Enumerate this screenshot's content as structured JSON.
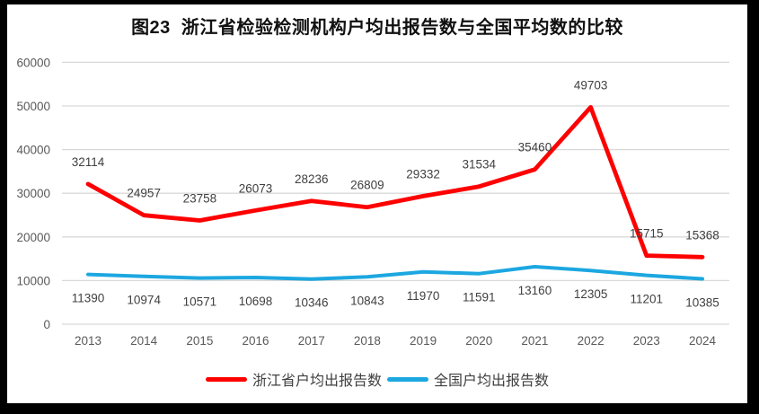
{
  "page": {
    "border_color": "#000000",
    "panel_background": "#ffffff"
  },
  "chart_data": {
    "type": "line",
    "title": "图23  浙江省检验检测机构户均出报告数与全国平均数的比较",
    "categories": [
      "2013",
      "2014",
      "2015",
      "2016",
      "2017",
      "2018",
      "2019",
      "2020",
      "2021",
      "2022",
      "2023",
      "2024"
    ],
    "series": [
      {
        "name": "浙江省户均出报告数",
        "color": "#FE0000",
        "values": [
          32114,
          24957,
          23758,
          26073,
          28236,
          26809,
          29332,
          31534,
          35460,
          49703,
          15715,
          15368
        ],
        "data_label_position": "above"
      },
      {
        "name": "全国户均出报告数",
        "color": "#1CA7E0",
        "values": [
          11390,
          10974,
          10571,
          10698,
          10346,
          10843,
          11970,
          11591,
          13160,
          12305,
          11201,
          10385
        ],
        "data_label_position": "below"
      }
    ],
    "xlabel": "",
    "ylabel": "",
    "ylim": [
      0,
      60000
    ],
    "ytick_interval": 10000,
    "yticks": [
      0,
      10000,
      20000,
      30000,
      40000,
      50000,
      60000
    ],
    "grid": true,
    "gridline_color": "#D9D9D9",
    "axis_label_color": "#595959",
    "data_label_color": "#404040",
    "legend_position": "bottom"
  }
}
